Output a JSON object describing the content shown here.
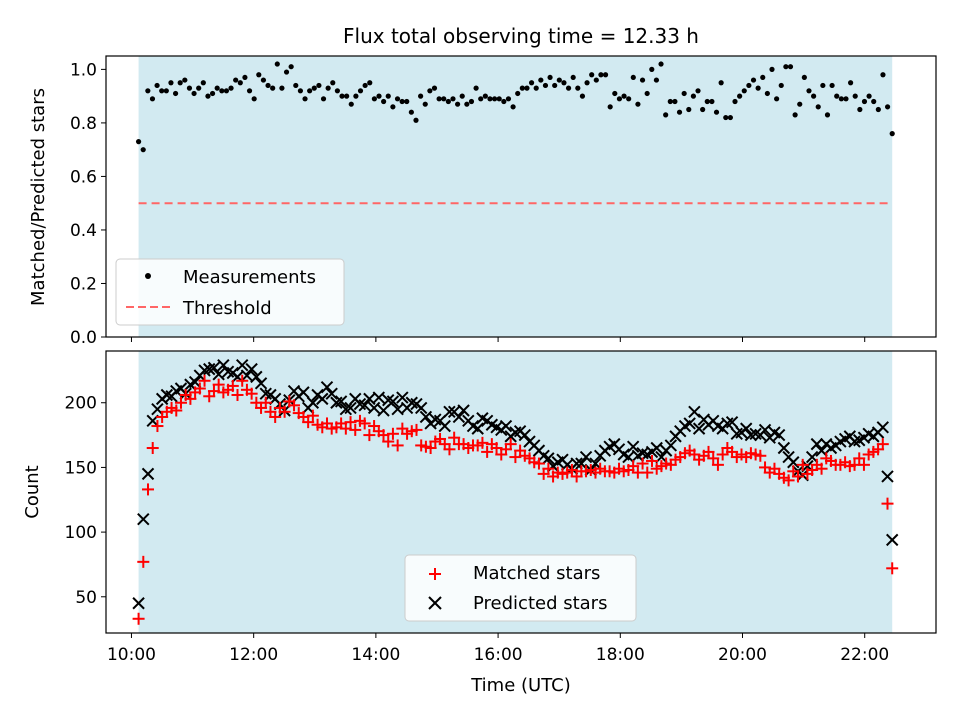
{
  "title": "Flux total observing time = 12.33 h",
  "colors": {
    "shade": "#add8e6",
    "threshold": "#ff6666",
    "matched": "#ff0000",
    "predicted": "#000000",
    "measurement": "#000000"
  },
  "legend_top": {
    "measurements": "Measurements",
    "threshold": "Threshold"
  },
  "legend_bottom": {
    "matched": "Matched stars",
    "predicted": "Predicted stars"
  },
  "chart_data": [
    {
      "type": "scatter",
      "panel": "top",
      "ylabel": "Matched/Predicted stars",
      "xlim": [
        "09:35",
        "23:10"
      ],
      "ylim": [
        0.0,
        1.05
      ],
      "yticks": [
        "0.0",
        "0.2",
        "0.4",
        "0.6",
        "0.8",
        "1.0"
      ],
      "shaded_span": [
        "10:07",
        "22:27"
      ],
      "threshold": 0.5,
      "grid": false,
      "legend_position": "lower-left",
      "series": [
        {
          "name": "Measurements",
          "x_start": "10:07",
          "x_end": "22:27",
          "values": [
            0.73,
            0.7,
            0.92,
            0.89,
            0.94,
            0.92,
            0.92,
            0.95,
            0.91,
            0.95,
            0.96,
            0.93,
            0.91,
            0.93,
            0.95,
            0.9,
            0.91,
            0.93,
            0.92,
            0.92,
            0.93,
            0.96,
            0.95,
            0.97,
            0.92,
            0.89,
            0.98,
            0.96,
            0.94,
            0.93,
            1.02,
            0.93,
            0.99,
            1.01,
            0.94,
            0.92,
            0.89,
            0.92,
            0.93,
            0.94,
            0.89,
            0.93,
            0.95,
            0.92,
            0.9,
            0.9,
            0.87,
            0.9,
            0.92,
            0.94,
            0.95,
            0.89,
            0.9,
            0.88,
            0.9,
            0.86,
            0.89,
            0.88,
            0.88,
            0.84,
            0.81,
            0.9,
            0.87,
            0.92,
            0.93,
            0.89,
            0.89,
            0.88,
            0.89,
            0.87,
            0.9,
            0.87,
            0.88,
            0.93,
            0.89,
            0.9,
            0.89,
            0.89,
            0.89,
            0.88,
            0.89,
            0.86,
            0.91,
            0.93,
            0.93,
            0.95,
            0.93,
            0.96,
            0.94,
            0.97,
            0.94,
            0.96,
            0.95,
            0.93,
            0.97,
            0.93,
            0.9,
            0.95,
            0.98,
            0.96,
            0.98,
            0.98,
            0.86,
            0.91,
            0.89,
            0.9,
            0.89,
            0.97,
            0.87,
            0.96,
            0.91,
            1.0,
            0.96,
            1.02,
            0.83,
            0.88,
            0.88,
            0.84,
            0.91,
            0.85,
            0.9,
            0.92,
            0.85,
            0.88,
            0.88,
            0.84,
            0.95,
            0.82,
            0.82,
            0.88,
            0.9,
            0.92,
            0.94,
            0.96,
            0.93,
            0.97,
            0.91,
            1.0,
            0.89,
            0.94,
            1.01,
            1.01,
            0.83,
            0.87,
            0.97,
            0.92,
            0.9,
            0.86,
            0.94,
            0.83,
            0.94,
            0.9,
            0.89,
            0.89,
            0.95,
            0.9,
            0.85,
            0.88,
            0.9,
            0.88,
            0.85,
            0.98,
            0.86,
            0.76
          ]
        }
      ]
    },
    {
      "type": "scatter",
      "panel": "bottom",
      "xlabel": "Time (UTC)",
      "ylabel": "Count",
      "xlim": [
        "09:35",
        "23:10"
      ],
      "ylim": [
        22,
        240
      ],
      "xticks": [
        "10:00",
        "12:00",
        "14:00",
        "16:00",
        "18:00",
        "20:00",
        "22:00"
      ],
      "yticks": [
        50,
        100,
        150,
        200
      ],
      "shaded_span": [
        "10:07",
        "22:27"
      ],
      "grid": false,
      "legend_position": "lower-center",
      "series": [
        {
          "name": "Matched stars",
          "marker": "+",
          "x_start": "10:07",
          "x_end": "22:27",
          "values": [
            33,
            77,
            133,
            165,
            182,
            189,
            193,
            196,
            194,
            200,
            206,
            203,
            208,
            211,
            217,
            205,
            209,
            214,
            208,
            210,
            213,
            206,
            217,
            210,
            207,
            200,
            196,
            200,
            193,
            189,
            196,
            193,
            201,
            198,
            192,
            189,
            185,
            190,
            183,
            181,
            184,
            180,
            181,
            184,
            180,
            185,
            179,
            186,
            184,
            175,
            182,
            178,
            175,
            170,
            176,
            167,
            180,
            176,
            178,
            179,
            167,
            166,
            165,
            170,
            172,
            168,
            164,
            173,
            168,
            168,
            165,
            167,
            167,
            169,
            162,
            168,
            165,
            160,
            164,
            168,
            158,
            163,
            159,
            157,
            154,
            153,
            145,
            149,
            143,
            146,
            145,
            146,
            148,
            143,
            147,
            147,
            148,
            146,
            149,
            147,
            147,
            146,
            149,
            147,
            148,
            151,
            146,
            153,
            146,
            155,
            149,
            151,
            153,
            152,
            156,
            158,
            161,
            163,
            160,
            156,
            159,
            162,
            157,
            152,
            160,
            165,
            162,
            158,
            160,
            158,
            161,
            160,
            159,
            150,
            146,
            149,
            145,
            142,
            140,
            147,
            143,
            152,
            145,
            148,
            152,
            149,
            157,
            155,
            152,
            152,
            154,
            151,
            152,
            157,
            152,
            160,
            162,
            164,
            168,
            122,
            72
          ]
        },
        {
          "name": "Predicted stars",
          "marker": "x",
          "x_start": "10:07",
          "x_end": "22:27",
          "values": [
            45,
            110,
            145,
            186,
            195,
            203,
            206,
            205,
            209,
            211,
            207,
            214,
            216,
            221,
            225,
            226,
            227,
            222,
            229,
            224,
            223,
            220,
            229,
            221,
            226,
            220,
            215,
            207,
            206,
            203,
            199,
            194,
            202,
            209,
            205,
            208,
            196,
            200,
            206,
            203,
            212,
            207,
            200,
            201,
            195,
            196,
            203,
            199,
            198,
            203,
            196,
            204,
            194,
            202,
            201,
            195,
            204,
            196,
            200,
            199,
            196,
            189,
            184,
            187,
            186,
            182,
            193,
            193,
            189,
            194,
            186,
            182,
            180,
            188,
            186,
            183,
            181,
            179,
            182,
            174,
            177,
            178,
            175,
            170,
            167,
            163,
            159,
            157,
            151,
            154,
            156,
            152,
            149,
            153,
            153,
            158,
            148,
            153,
            159,
            163,
            166,
            168,
            164,
            160,
            158,
            166,
            159,
            161,
            160,
            162,
            165,
            158,
            163,
            167,
            174,
            178,
            182,
            184,
            193,
            180,
            187,
            183,
            186,
            182,
            180,
            184,
            185,
            176,
            177,
            180,
            175,
            176,
            175,
            179,
            173,
            177,
            175,
            165,
            158,
            154,
            147,
            144,
            151,
            158,
            168,
            163,
            168,
            165,
            167,
            170,
            172,
            174,
            170,
            171,
            173,
            176,
            174,
            177,
            181,
            143,
            94
          ]
        }
      ]
    }
  ]
}
